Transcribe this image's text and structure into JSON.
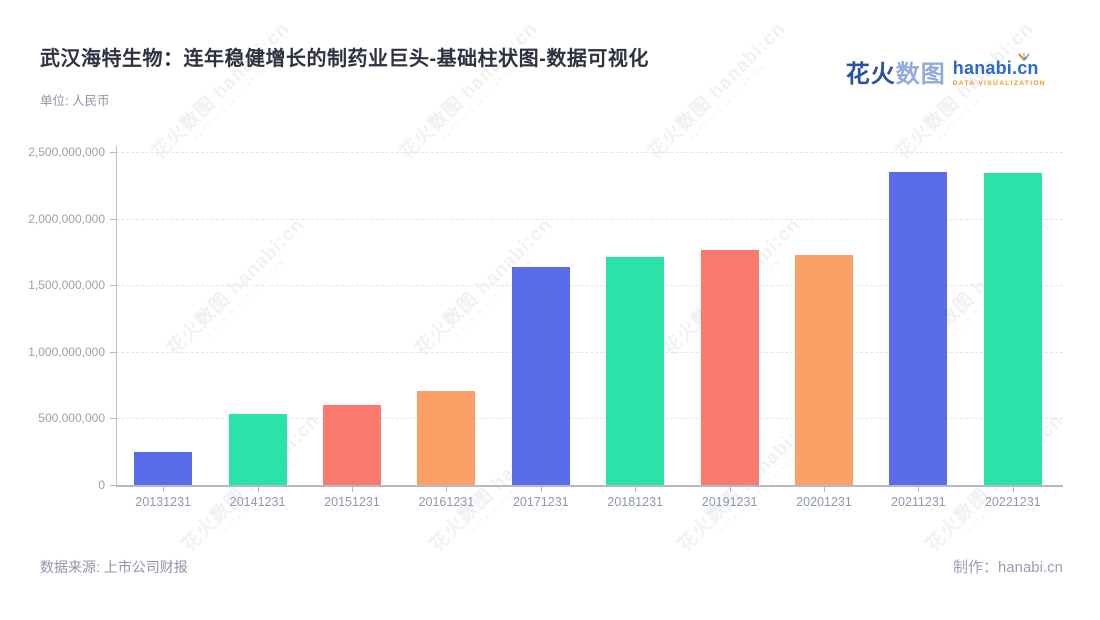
{
  "header": {
    "title": "武汉海特生物：连年稳健增长的制药业巨头-基础柱状图-数据可视化",
    "unit_label": "单位: 人民币"
  },
  "logo": {
    "brand_cn_bold": "花火",
    "brand_cn_light": "数图",
    "brand_en": "hanabi.cn",
    "brand_sub": "DATA VISUALIZATION"
  },
  "footer": {
    "source": "数据来源: 上市公司财报",
    "credit": "制作：hanabi.cn"
  },
  "watermark": {
    "main": "花火数图 hanabi:cn",
    "sub": "DATA VISUALIZATION"
  },
  "chart_data": {
    "type": "bar",
    "title": "武汉海特生物：连年稳健增长的制药业巨头-基础柱状图-数据可视化",
    "unit": "人民币",
    "categories": [
      "20131231",
      "20141231",
      "20151231",
      "20161231",
      "20171231",
      "20181231",
      "20191231",
      "20201231",
      "20211231",
      "20221231"
    ],
    "values": [
      250000000,
      535000000,
      600000000,
      705000000,
      1640000000,
      1710000000,
      1765000000,
      1730000000,
      2350000000,
      2340000000
    ],
    "bar_colors": [
      "#5b6cea",
      "#2be3a8",
      "#fa7a70",
      "#fba066",
      "#5b6cea",
      "#2be3a8",
      "#fa7a70",
      "#fba066",
      "#5b6cea",
      "#2be3a8"
    ],
    "palette": [
      "#5b6cea",
      "#2be3a8",
      "#fa7a70",
      "#fba066"
    ],
    "xlabel": "",
    "ylabel": "",
    "ylim": [
      0,
      2500000000
    ],
    "ytick_interval": 500000000,
    "ytick_labels": [
      "0",
      "500,000,000",
      "1,000,000,000",
      "1,500,000,000",
      "2,000,000,000",
      "2,500,000,000"
    ],
    "grid": true,
    "grid_style": "dashed",
    "legend": false
  }
}
